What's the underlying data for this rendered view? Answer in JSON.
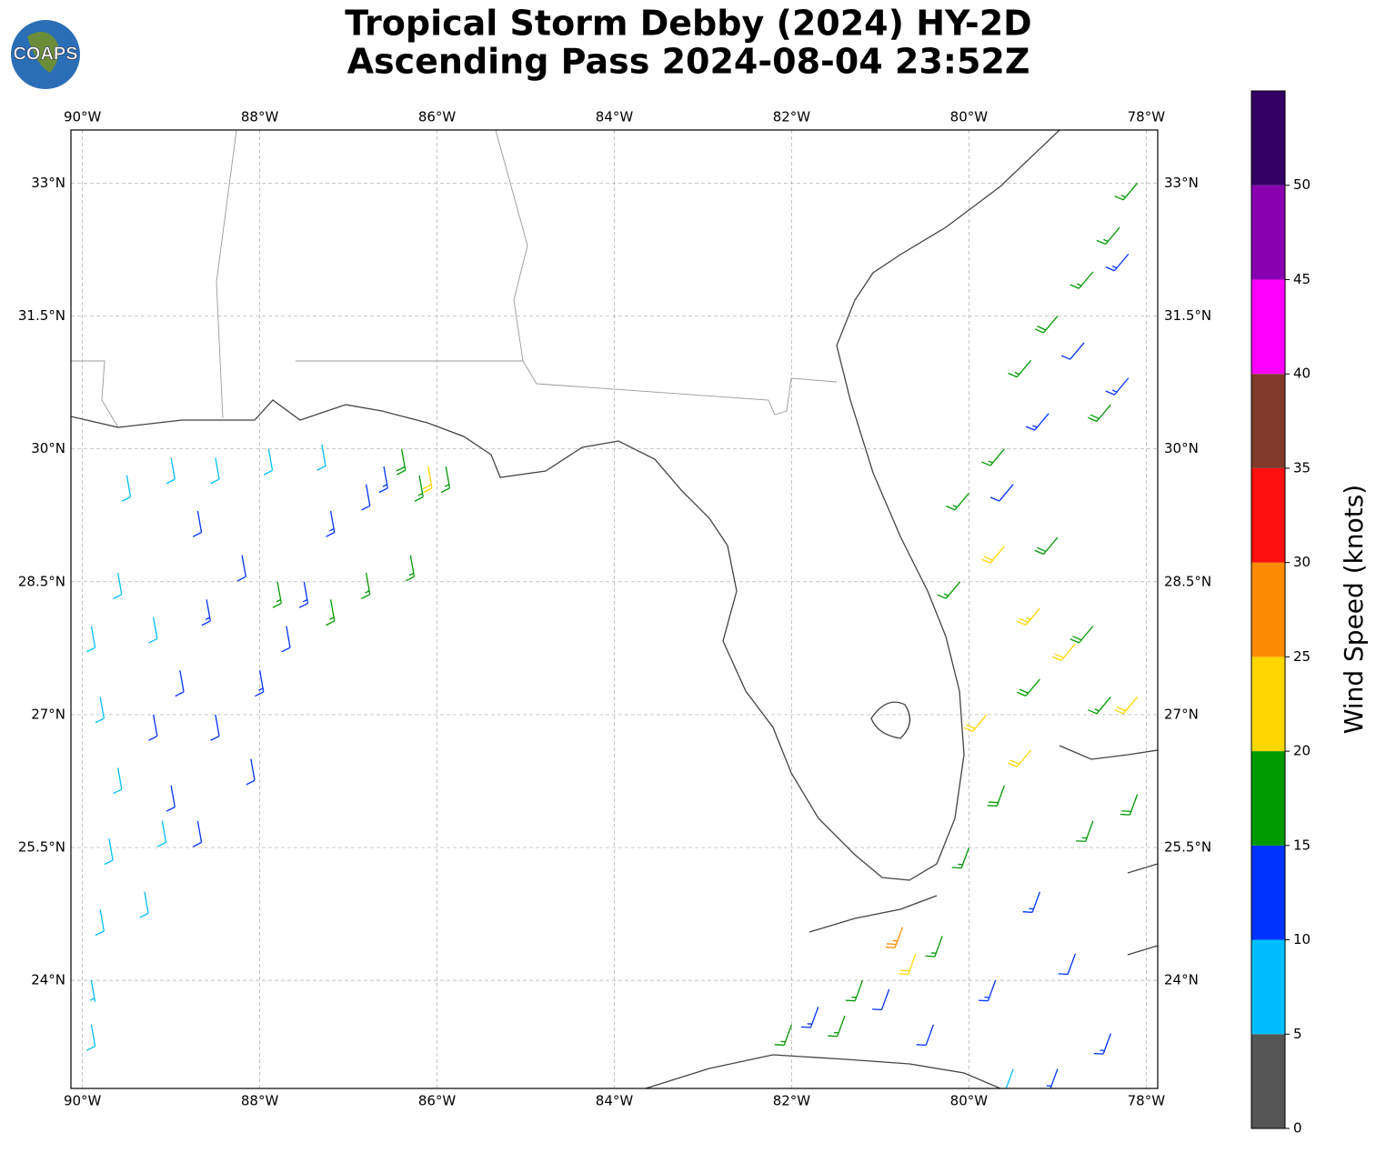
{
  "logo": "COAPS",
  "title": [
    "Tropical Storm Debby (2024) HY-2D",
    "Ascending Pass 2024-08-04 23:52Z"
  ],
  "map": {
    "xlim": [
      -90.13,
      -77.87
    ],
    "ylim": [
      22.78,
      33.6
    ],
    "xticks": [
      {
        "value": -90,
        "label": "90°W"
      },
      {
        "value": -88,
        "label": "88°W"
      },
      {
        "value": -86,
        "label": "86°W"
      },
      {
        "value": -84,
        "label": "84°W"
      },
      {
        "value": -82,
        "label": "82°W"
      },
      {
        "value": -80,
        "label": "80°W"
      },
      {
        "value": -78,
        "label": "78°W"
      }
    ],
    "yticks": [
      {
        "value": 24,
        "label": "24°N"
      },
      {
        "value": 25.5,
        "label": "25.5°N"
      },
      {
        "value": 27,
        "label": "27°N"
      },
      {
        "value": 28.5,
        "label": "28.5°N"
      },
      {
        "value": 30,
        "label": "30°N"
      },
      {
        "value": 31.5,
        "label": "31.5°N"
      },
      {
        "value": 33,
        "label": "33°N"
      }
    ],
    "grid": true
  },
  "barbs": {
    "lon": [
      -89.9,
      -89.8,
      -89.7,
      -89.6,
      -89.8,
      -89.9,
      -89.6,
      -89.3,
      -89.1,
      -89.9,
      -89.5,
      -89.0,
      -88.5,
      -87.9,
      -87.3,
      -89.2,
      -89.2,
      -89.0,
      -88.7,
      -88.9,
      -88.6,
      -88.2,
      -88.5,
      -88.0,
      -87.7,
      -87.5,
      -87.2,
      -86.8,
      -88.1,
      -88.7,
      -86.6,
      -87.8,
      -87.2,
      -86.8,
      -86.3,
      -86.2,
      -85.9,
      -86.4,
      -86.1,
      -78.1,
      -78.3,
      -78.6,
      -79.0,
      -79.3,
      -78.4,
      -79.6,
      -80.0,
      -79.0,
      -80.1,
      -78.6,
      -79.2,
      -78.4,
      -80.0,
      -79.6,
      -78.6,
      -78.1,
      -82.0,
      -81.4,
      -80.3,
      -81.2,
      -78.2,
      -78.7,
      -79.1,
      -79.5,
      -78.2,
      -79.2,
      -78.8,
      -79.7,
      -80.4,
      -81.7,
      -78.4,
      -79.0,
      -80.9,
      -79.6,
      -79.2,
      -78.8,
      -79.8,
      -79.3,
      -80.6,
      -78.1,
      -80.75,
      -79.5
    ],
    "lat": [
      24.0,
      24.8,
      25.6,
      26.4,
      27.2,
      28.0,
      28.6,
      25.0,
      25.8,
      23.5,
      29.7,
      29.9,
      29.9,
      30.0,
      30.05,
      28.1,
      27.0,
      26.2,
      25.8,
      27.5,
      28.3,
      28.8,
      27.0,
      27.5,
      28.0,
      28.5,
      29.3,
      29.6,
      26.5,
      29.3,
      29.8,
      28.5,
      28.3,
      28.6,
      28.8,
      29.7,
      29.8,
      30.0,
      29.8,
      33.0,
      32.5,
      32.0,
      31.5,
      31.0,
      30.5,
      30.0,
      29.5,
      29.0,
      28.5,
      28.0,
      27.4,
      27.2,
      25.5,
      26.2,
      25.8,
      26.1,
      23.5,
      23.6,
      24.5,
      24.0,
      32.2,
      31.2,
      30.4,
      29.6,
      30.8,
      25.0,
      24.3,
      24.0,
      23.5,
      23.7,
      23.4,
      23.0,
      23.9,
      28.9,
      28.2,
      27.8,
      27.0,
      26.6,
      24.3,
      27.2,
      24.6,
      23.0
    ],
    "speed": [
      7,
      8,
      8,
      9,
      9,
      8,
      9,
      8,
      9,
      8,
      8,
      9,
      9,
      8,
      9,
      9,
      12,
      11,
      11,
      12,
      13,
      12,
      12,
      13,
      12,
      13,
      13,
      12,
      11,
      11,
      14,
      16,
      17,
      17,
      16,
      17,
      16,
      18,
      21,
      17,
      16,
      17,
      18,
      17,
      18,
      17,
      16,
      18,
      17,
      18,
      19,
      17,
      17,
      18,
      16,
      18,
      17,
      16,
      17,
      17,
      13,
      12,
      13,
      12,
      14,
      13,
      12,
      13,
      12,
      13,
      13,
      13,
      12,
      22,
      23,
      21,
      22,
      21,
      21,
      21,
      26,
      8
    ],
    "dir": [
      170,
      170,
      170,
      170,
      170,
      170,
      170,
      170,
      170,
      170,
      170,
      170,
      170,
      170,
      170,
      170,
      170,
      170,
      170,
      170,
      170,
      170,
      170,
      170,
      170,
      170,
      170,
      170,
      170,
      170,
      170,
      170,
      170,
      170,
      170,
      170,
      170,
      170,
      170,
      220,
      220,
      220,
      220,
      220,
      220,
      220,
      220,
      220,
      220,
      220,
      220,
      220,
      200,
      200,
      200,
      200,
      200,
      200,
      200,
      200,
      220,
      220,
      220,
      220,
      220,
      200,
      200,
      200,
      200,
      200,
      200,
      200,
      200,
      220,
      220,
      220,
      220,
      220,
      200,
      220,
      200,
      200
    ]
  },
  "colorbar": {
    "label": "Wind Speed (knots)",
    "lim": [
      0,
      55
    ],
    "ticks": [
      0,
      5,
      10,
      15,
      20,
      25,
      30,
      35,
      40,
      45,
      50
    ],
    "colors": [
      "#555555",
      "#00bfff",
      "#0033ff",
      "#009900",
      "#ffd700",
      "#ff8c00",
      "#ff1010",
      "#7f3a2a",
      "#ff00ff",
      "#8800b0",
      "#330066"
    ]
  }
}
